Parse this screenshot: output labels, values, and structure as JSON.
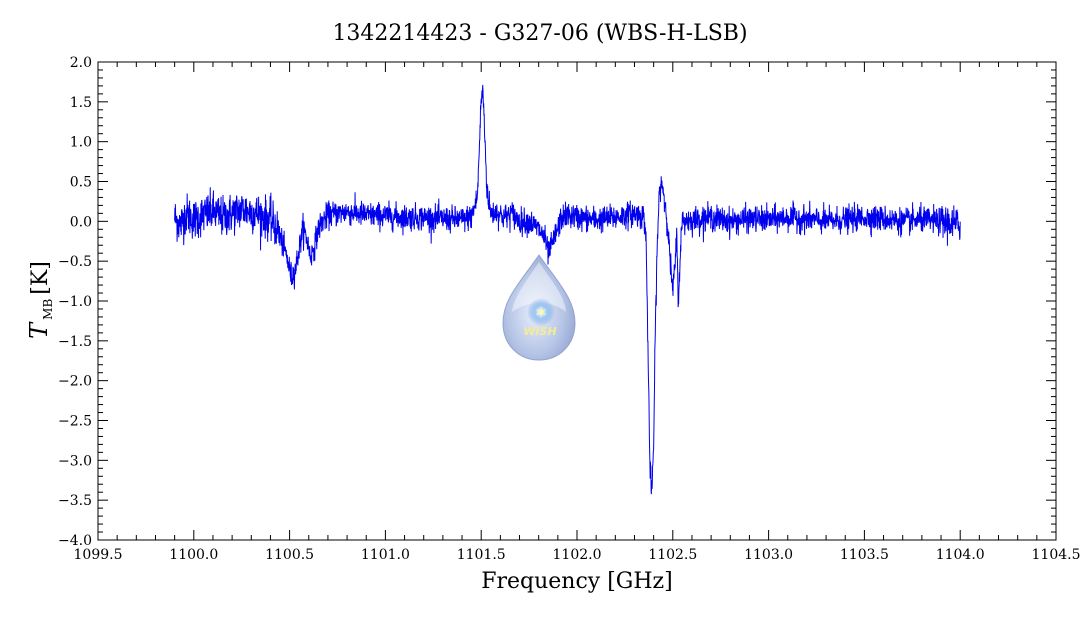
{
  "chart_data": {
    "type": "line",
    "title": "1342214423 - G327-06 (WBS-H-LSB)",
    "xlabel": "Frequency [GHz]",
    "ylabel": "T",
    "ylabel_subscript": "MB",
    "ylabel_unit": "[K]",
    "xlim": [
      1099.5,
      1104.5
    ],
    "ylim": [
      -4.0,
      2.0
    ],
    "x_ticks": [
      "1099.5",
      "1100.0",
      "1100.5",
      "1101.0",
      "1101.5",
      "1102.0",
      "1102.5",
      "1103.0",
      "1103.5",
      "1104.0",
      "1104.5"
    ],
    "y_ticks": [
      "2.0",
      "1.5",
      "1.0",
      "0.5",
      "0.0",
      "−0.5",
      "−1.0",
      "−1.5",
      "−2.0",
      "−2.5",
      "−3.0",
      "−3.5",
      "−4.0"
    ],
    "grid": false,
    "series": [
      {
        "color": "#0000ee",
        "x": [
          1099.9,
          1099.93,
          1099.96,
          1100.0,
          1100.05,
          1100.1,
          1100.15,
          1100.2,
          1100.25,
          1100.3,
          1100.35,
          1100.4,
          1100.44,
          1100.48,
          1100.51,
          1100.53,
          1100.55,
          1100.57,
          1100.59,
          1100.61,
          1100.63,
          1100.65,
          1100.67,
          1100.7,
          1100.75,
          1100.8,
          1100.9,
          1101.0,
          1101.1,
          1101.2,
          1101.3,
          1101.4,
          1101.45,
          1101.48,
          1101.49,
          1101.5,
          1101.51,
          1101.52,
          1101.53,
          1101.55,
          1101.58,
          1101.62,
          1101.66,
          1101.7,
          1101.75,
          1101.8,
          1101.83,
          1101.85,
          1101.87,
          1101.89,
          1101.92,
          1101.95,
          1102.0,
          1102.1,
          1102.2,
          1102.3,
          1102.35,
          1102.36,
          1102.37,
          1102.38,
          1102.39,
          1102.4,
          1102.41,
          1102.42,
          1102.43,
          1102.44,
          1102.45,
          1102.46,
          1102.47,
          1102.48,
          1102.5,
          1102.51,
          1102.52,
          1102.53,
          1102.54,
          1102.55,
          1102.6,
          1102.7,
          1102.8,
          1102.9,
          1103.0,
          1103.1,
          1103.2,
          1103.3,
          1103.4,
          1103.5,
          1103.6,
          1103.7,
          1103.8,
          1103.9,
          1104.0
        ],
        "y": [
          0.05,
          -0.05,
          0.1,
          0.02,
          0.08,
          0.12,
          0.05,
          0.1,
          0.15,
          0.12,
          0.08,
          0.02,
          -0.12,
          -0.4,
          -0.7,
          -0.6,
          -0.35,
          -0.08,
          -0.22,
          -0.45,
          -0.3,
          -0.1,
          0.0,
          0.08,
          0.1,
          0.12,
          0.08,
          0.07,
          0.05,
          0.05,
          0.03,
          0.02,
          0.06,
          0.3,
          0.9,
          1.55,
          1.62,
          1.0,
          0.4,
          0.1,
          0.12,
          0.05,
          0.1,
          0.0,
          0.0,
          -0.1,
          -0.2,
          -0.4,
          -0.3,
          -0.15,
          0.05,
          0.08,
          0.05,
          0.02,
          0.05,
          0.1,
          0.05,
          -0.2,
          -1.5,
          -3.0,
          -3.45,
          -2.8,
          -1.2,
          -0.2,
          0.35,
          0.5,
          0.4,
          0.2,
          0.05,
          -0.3,
          -0.9,
          -0.6,
          -0.2,
          -1.05,
          -0.3,
          0.0,
          0.02,
          0.05,
          0.0,
          0.03,
          0.02,
          0.05,
          0.03,
          0.0,
          0.02,
          0.05,
          0.03,
          0.0,
          0.02,
          0.0,
          -0.05
        ],
        "noise_rms": 0.08
      }
    ]
  },
  "watermark": {
    "text": "WISH"
  }
}
